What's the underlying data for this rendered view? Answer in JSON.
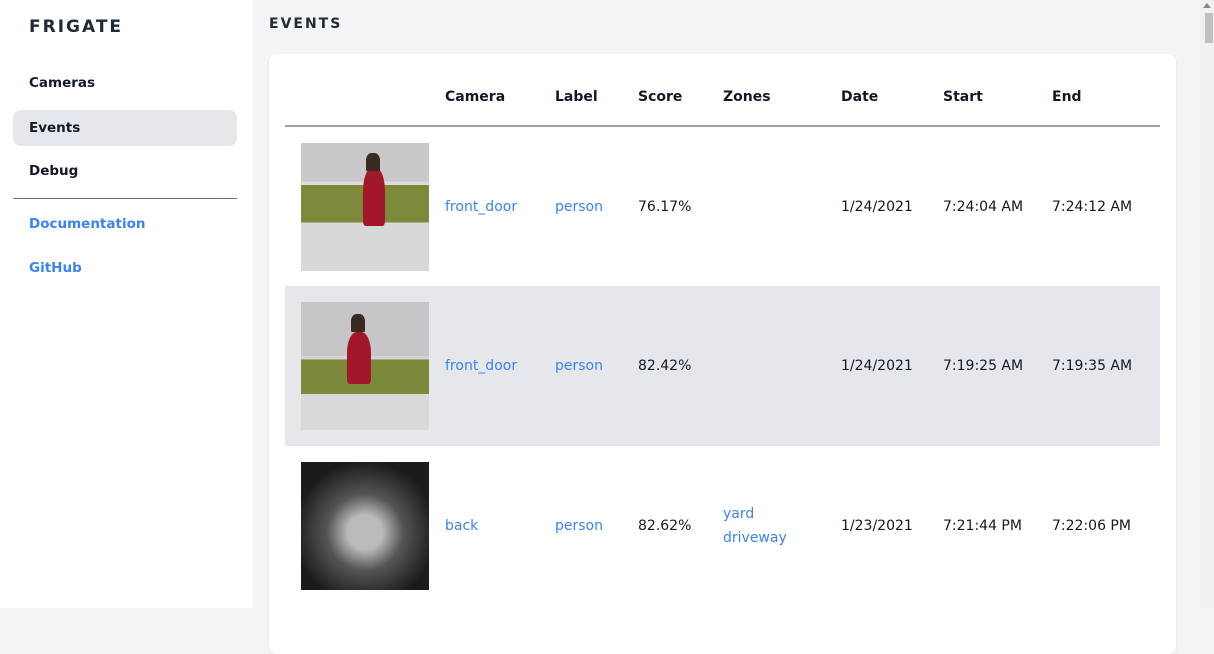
{
  "sidebar": {
    "brand": "FRIGATE",
    "items": [
      {
        "label": "Cameras"
      },
      {
        "label": "Events",
        "active": true
      },
      {
        "label": "Debug"
      }
    ],
    "links": [
      {
        "label": "Documentation"
      },
      {
        "label": "GitHub"
      }
    ]
  },
  "page": {
    "title": "EVENTS"
  },
  "table": {
    "headers": [
      "",
      "Camera",
      "Label",
      "Score",
      "Zones",
      "Date",
      "Start",
      "End"
    ],
    "rows": [
      {
        "camera": "front_door",
        "label": "person",
        "score": "76.17%",
        "zones": [
          "",
          ""
        ],
        "date": "1/24/2021",
        "start": "7:24:04 AM",
        "end": "7:24:12 AM"
      },
      {
        "camera": "front_door",
        "label": "person",
        "score": "82.42%",
        "zones": [
          "",
          ""
        ],
        "date": "1/24/2021",
        "start": "7:19:25 AM",
        "end": "7:19:35 AM"
      },
      {
        "camera": "back",
        "label": "person",
        "score": "82.62%",
        "zones": [
          "yard",
          "driveway"
        ],
        "date": "1/23/2021",
        "start": "7:21:44 PM",
        "end": "7:22:06 PM"
      }
    ]
  },
  "colors": {
    "accent": "#3b82f6",
    "active_bg": "#e5e7eb",
    "page_bg": "#f3f4f6"
  }
}
